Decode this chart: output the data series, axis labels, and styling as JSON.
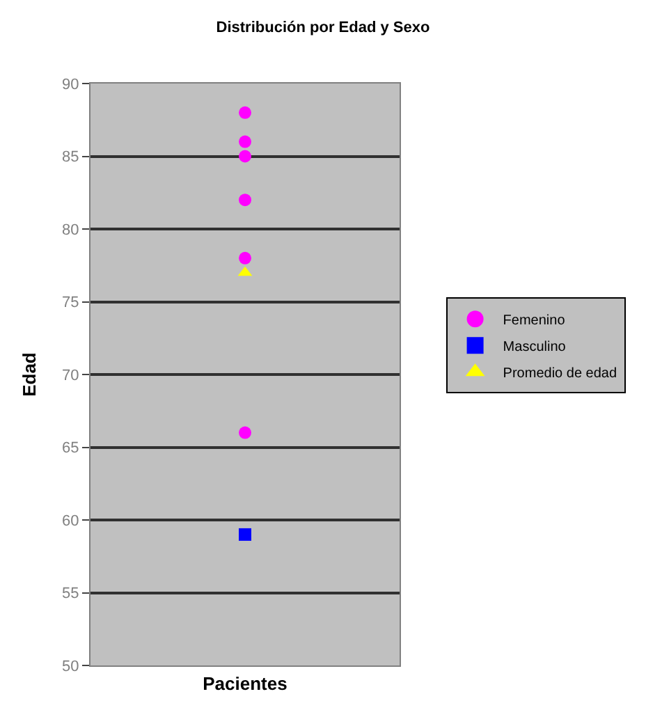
{
  "chart_data": {
    "type": "scatter",
    "title": "Distribución por Edad y Sexo",
    "xlabel": "Pacientes",
    "ylabel": "Edad",
    "categories": [
      null
    ],
    "ylim": [
      50,
      90
    ],
    "yticks": [
      50,
      55,
      60,
      65,
      70,
      75,
      80,
      85,
      90
    ],
    "grid": "y",
    "legend": "right",
    "tick_labels": "y",
    "series": [
      {
        "name": "Femenino",
        "color": "#ff00ff",
        "marker": "circle",
        "x": [
          null,
          null,
          null,
          null,
          null,
          null
        ],
        "values": [
          88,
          86,
          85,
          82,
          78,
          66
        ]
      },
      {
        "name": "Masculino",
        "color": "#0000ff",
        "marker": "square",
        "x": [
          null
        ],
        "values": [
          59
        ]
      },
      {
        "name": "Promedio de edad",
        "color": "#ffff00",
        "marker": "triangle",
        "x": [
          null
        ],
        "values": [
          77
        ]
      }
    ]
  }
}
